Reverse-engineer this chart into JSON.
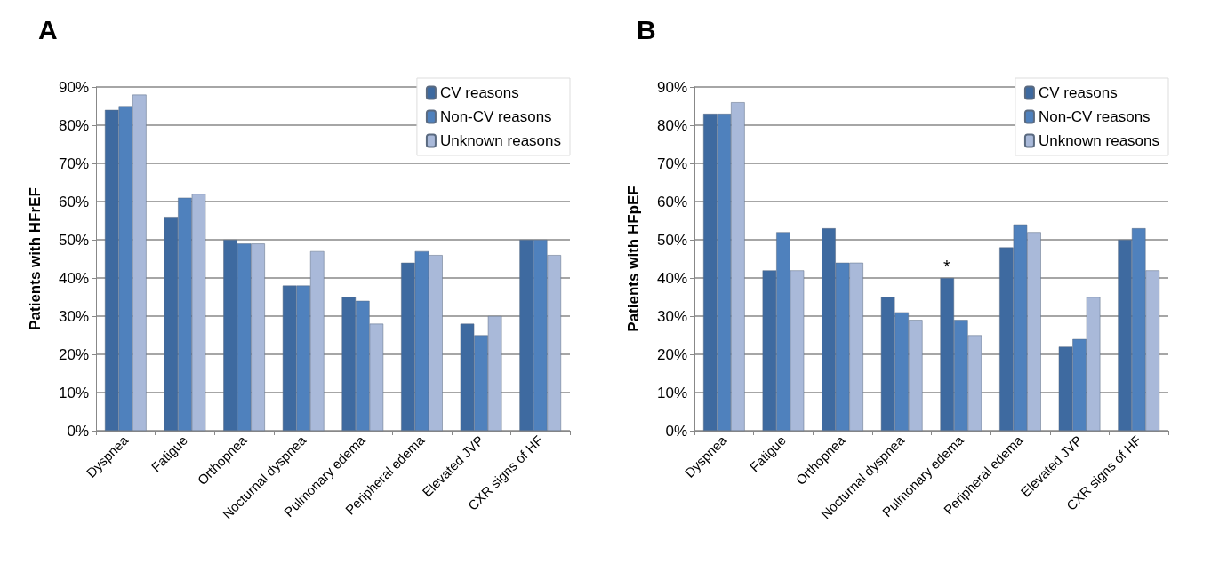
{
  "chart_data": [
    {
      "type": "bar",
      "title": "A",
      "ylabel": "Patients with HFrEF",
      "categories": [
        "Dyspnea",
        "Fatigue",
        "Orthopnea",
        "Nocturnal dyspnea",
        "Pulmonary edema",
        "Peripheral edema",
        "Elevated JVP",
        "CXR signs of HF"
      ],
      "series": [
        {
          "name": "CV reasons",
          "color": "#3e6aa0",
          "values": [
            84,
            56,
            50,
            38,
            35,
            44,
            28,
            50
          ]
        },
        {
          "name": "Non-CV reasons",
          "color": "#4f81bd",
          "values": [
            85,
            61,
            49,
            38,
            34,
            47,
            25,
            50
          ]
        },
        {
          "name": "Unknown reasons",
          "color": "#a9b9d9",
          "values": [
            88,
            62,
            49,
            47,
            28,
            46,
            30,
            46
          ]
        }
      ],
      "ylim": [
        0,
        90
      ],
      "yticks": [
        {
          "value": 0,
          "label": "0%"
        },
        {
          "value": 10,
          "label": "10%"
        },
        {
          "value": 20,
          "label": "20%"
        },
        {
          "value": 30,
          "label": "30%"
        },
        {
          "value": 40,
          "label": "40%"
        },
        {
          "value": 50,
          "label": "50%"
        },
        {
          "value": 60,
          "label": "60%"
        },
        {
          "value": 70,
          "label": "70%"
        },
        {
          "value": 80,
          "label": "80%"
        },
        {
          "value": 90,
          "label": "90%"
        }
      ],
      "grid": "y",
      "legend": "top right"
    },
    {
      "type": "bar",
      "title": "B",
      "ylabel": "Patients with HFpEF",
      "categories": [
        "Dyspnea",
        "Fatigue",
        "Orthopnea",
        "Nocturnal dyspnea",
        "Pulmonary edema",
        "Peripheral edema",
        "Elevated JVP",
        "CXR signs of HF"
      ],
      "series": [
        {
          "name": "CV reasons",
          "color": "#3e6aa0",
          "values": [
            83,
            42,
            53,
            35,
            40,
            48,
            22,
            50
          ]
        },
        {
          "name": "Non-CV reasons",
          "color": "#4f81bd",
          "values": [
            83,
            52,
            44,
            31,
            29,
            54,
            24,
            53
          ]
        },
        {
          "name": "Unknown reasons",
          "color": "#a9b9d9",
          "values": [
            86,
            42,
            44,
            29,
            25,
            52,
            35,
            42
          ]
        }
      ],
      "ylim": [
        0,
        90
      ],
      "yticks": [
        {
          "value": 0,
          "label": "0%"
        },
        {
          "value": 10,
          "label": "10%"
        },
        {
          "value": 20,
          "label": "20%"
        },
        {
          "value": 30,
          "label": "30%"
        },
        {
          "value": 40,
          "label": "40%"
        },
        {
          "value": 50,
          "label": "50%"
        },
        {
          "value": 60,
          "label": "60%"
        },
        {
          "value": 70,
          "label": "70%"
        },
        {
          "value": 80,
          "label": "80%"
        },
        {
          "value": 90,
          "label": "90%"
        }
      ],
      "annotations": [
        "*"
      ],
      "grid": "y",
      "legend": "top right"
    }
  ]
}
